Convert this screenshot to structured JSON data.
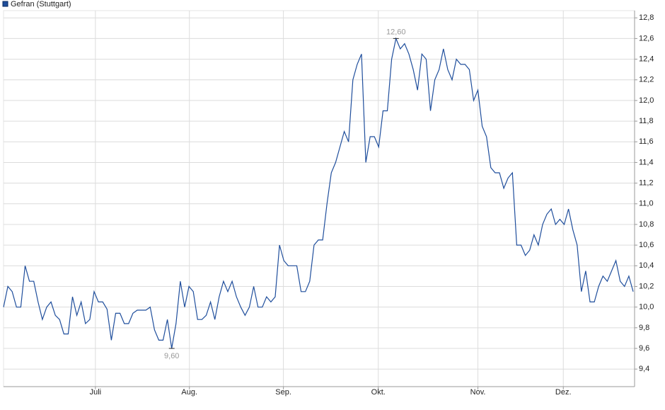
{
  "chart_data": {
    "type": "line",
    "series": [
      {
        "name": "Gefran (Stuttgart)",
        "color": "#1f4e9c",
        "values": [
          10.0,
          10.2,
          10.15,
          10.0,
          10.0,
          10.4,
          10.25,
          10.25,
          10.05,
          9.88,
          10.0,
          10.05,
          9.92,
          9.88,
          9.74,
          9.74,
          10.1,
          9.92,
          10.05,
          9.84,
          9.88,
          10.15,
          10.05,
          10.05,
          9.98,
          9.68,
          9.94,
          9.94,
          9.84,
          9.84,
          9.94,
          9.97,
          9.97,
          9.97,
          10.0,
          9.78,
          9.68,
          9.68,
          9.88,
          9.6,
          9.84,
          10.25,
          10.0,
          10.2,
          10.15,
          9.88,
          9.88,
          9.92,
          10.05,
          9.88,
          10.1,
          10.25,
          10.15,
          10.25,
          10.1,
          10.0,
          9.92,
          10.0,
          10.2,
          10.0,
          10.0,
          10.1,
          10.05,
          10.1,
          10.6,
          10.45,
          10.4,
          10.4,
          10.4,
          10.15,
          10.15,
          10.25,
          10.6,
          10.65,
          10.65,
          11.0,
          11.3,
          11.4,
          11.55,
          11.7,
          11.6,
          12.2,
          12.35,
          12.45,
          11.4,
          11.65,
          11.65,
          11.55,
          11.9,
          11.9,
          12.4,
          12.6,
          12.5,
          12.55,
          12.45,
          12.3,
          12.1,
          12.45,
          12.4,
          11.9,
          12.2,
          12.3,
          12.5,
          12.3,
          12.2,
          12.4,
          12.35,
          12.35,
          12.3,
          12.0,
          12.1,
          11.75,
          11.65,
          11.35,
          11.3,
          11.3,
          11.15,
          11.25,
          11.3,
          10.6,
          10.6,
          10.5,
          10.55,
          10.7,
          10.6,
          10.8,
          10.9,
          10.95,
          10.8,
          10.85,
          10.8,
          10.95,
          10.75,
          10.6,
          10.15,
          10.35,
          10.05,
          10.05,
          10.2,
          10.3,
          10.25,
          10.35,
          10.45,
          10.25,
          10.2,
          10.3,
          10.15
        ]
      }
    ],
    "xlim": [
      0,
      146
    ],
    "xticks": [
      {
        "value": 21.3,
        "label": "Juli"
      },
      {
        "value": 43.1,
        "label": "Aug."
      },
      {
        "value": 64.9,
        "label": "Sep."
      },
      {
        "value": 86.9,
        "label": "Okt."
      },
      {
        "value": 110,
        "label": "Nov."
      },
      {
        "value": 129.8,
        "label": "Dez."
      }
    ],
    "ylim": [
      9.23,
      12.87
    ],
    "yticks": [
      {
        "value": 9.4,
        "label": "9,4"
      },
      {
        "value": 9.6,
        "label": "9,6"
      },
      {
        "value": 9.8,
        "label": "9,8"
      },
      {
        "value": 10.0,
        "label": "10,0"
      },
      {
        "value": 10.2,
        "label": "10,2"
      },
      {
        "value": 10.4,
        "label": "10,4"
      },
      {
        "value": 10.6,
        "label": "10,6"
      },
      {
        "value": 10.8,
        "label": "10,8"
      },
      {
        "value": 11.0,
        "label": "11,0"
      },
      {
        "value": 11.2,
        "label": "11,2"
      },
      {
        "value": 11.4,
        "label": "11,4"
      },
      {
        "value": 11.6,
        "label": "11,6"
      },
      {
        "value": 11.8,
        "label": "11,8"
      },
      {
        "value": 12.0,
        "label": "12,0"
      },
      {
        "value": 12.2,
        "label": "12,2"
      },
      {
        "value": 12.4,
        "label": "12,4"
      },
      {
        "value": 12.6,
        "label": "12,6"
      },
      {
        "value": 12.8,
        "label": "12,8"
      }
    ],
    "annotations": [
      {
        "x": 91,
        "y": 12.6,
        "label": "12,60"
      },
      {
        "x": 39,
        "y": 9.6,
        "label": "9,60"
      }
    ],
    "grid": true
  }
}
